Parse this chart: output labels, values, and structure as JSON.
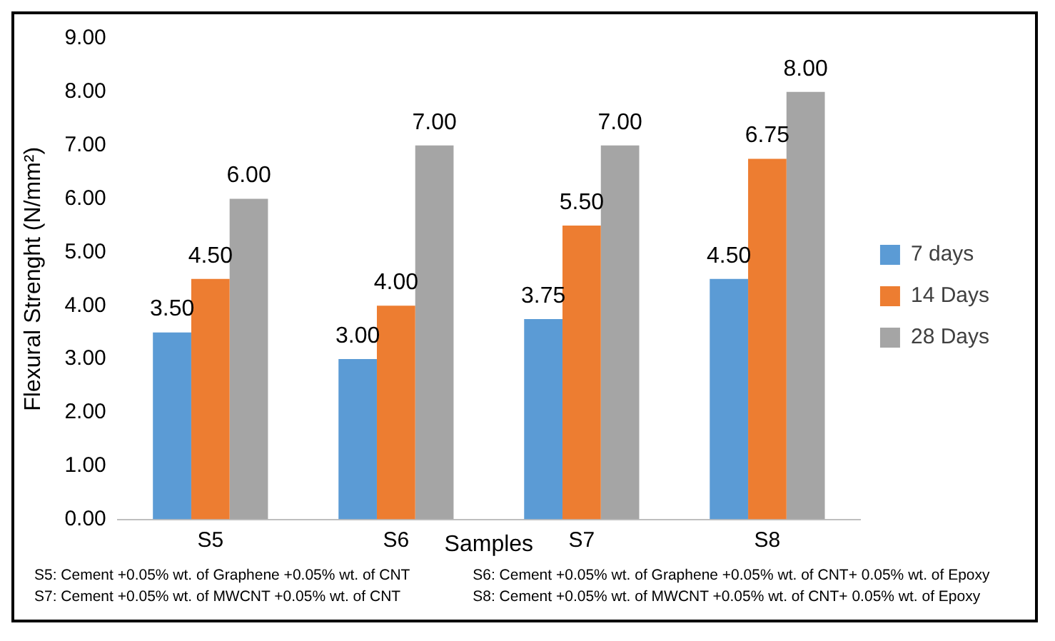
{
  "chart_data": {
    "type": "bar",
    "ylabel": "Flexural Strenght (N/mm²)",
    "xlabel": "Samples",
    "categories": [
      "S5",
      "S6",
      "S7",
      "S8"
    ],
    "series": [
      {
        "name": "7 days",
        "color": "#5b9bd5",
        "values": [
          3.5,
          3,
          3.75,
          4.5
        ],
        "value_labels": [
          "3.50",
          "3.00",
          "3.75",
          "4.50"
        ]
      },
      {
        "name": "14 Days",
        "color": "#ed7d31",
        "values": [
          4.5,
          4,
          5.5,
          6.75
        ],
        "value_labels": [
          "4.50",
          "4.00",
          "5.50",
          "6.75"
        ]
      },
      {
        "name": "28 Days",
        "color": "#a5a5a5",
        "values": [
          6,
          7,
          7,
          8
        ],
        "value_labels": [
          "6.00",
          "7.00",
          "7.00",
          "8.00"
        ]
      }
    ],
    "ylim": [
      0,
      9
    ],
    "yticks": [
      {
        "value": 0,
        "label": "0.00"
      },
      {
        "value": 1,
        "label": "1.00"
      },
      {
        "value": 2,
        "label": "2.00"
      },
      {
        "value": 3,
        "label": "3.00"
      },
      {
        "value": 4,
        "label": "4.00"
      },
      {
        "value": 5,
        "label": "5.00"
      },
      {
        "value": 6,
        "label": "6.00"
      },
      {
        "value": 7,
        "label": "7.00"
      },
      {
        "value": 8,
        "label": "8.00"
      },
      {
        "value": 9,
        "label": "9.00"
      }
    ],
    "grid": false,
    "legend": "right",
    "annotations": [
      "S5: Cement +0.05% wt. of Graphene +0.05% wt. of CNT",
      "S6: Cement +0.05% wt. of Graphene +0.05% wt. of CNT+ 0.05% wt. of Epoxy",
      "S7: Cement +0.05% wt. of MWCNT +0.05% wt. of CNT",
      "S8: Cement +0.05% wt. of MWCNT +0.05% wt. of CNT+ 0.05% wt. of Epoxy"
    ]
  }
}
